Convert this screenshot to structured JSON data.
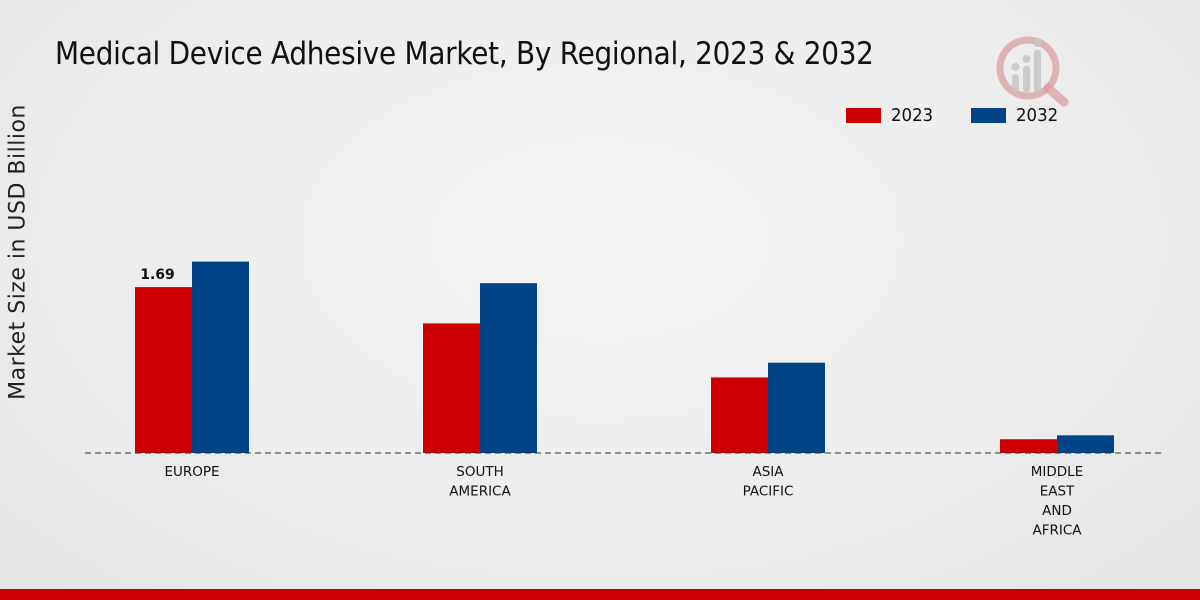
{
  "chart_data": {
    "type": "bar",
    "title": "Medical Device Adhesive Market, By Regional, 2023 & 2032",
    "xlabel": "",
    "ylabel": "Market Size in USD Billion",
    "categories": [
      [
        "EUROPE"
      ],
      [
        "SOUTH",
        "AMERICA"
      ],
      [
        "ASIA",
        "PACIFIC"
      ],
      [
        "MIDDLE",
        "EAST",
        "AND",
        "AFRICA"
      ]
    ],
    "series": [
      {
        "name": "2023",
        "color": "#cc0000",
        "values": [
          1.69,
          1.32,
          0.77,
          0.14
        ]
      },
      {
        "name": "2032",
        "color": "#004488",
        "values": [
          1.95,
          1.73,
          0.92,
          0.18
        ]
      }
    ],
    "data_labels": [
      {
        "series": 0,
        "index": 0,
        "text": "1.69"
      }
    ],
    "ylim": [
      0,
      3.8
    ],
    "grid": false,
    "legend": "top-right"
  },
  "colors": {
    "footer": "#cc0000",
    "logo": "#d8a0a0"
  },
  "logo_icon": "market-research-logo-icon"
}
